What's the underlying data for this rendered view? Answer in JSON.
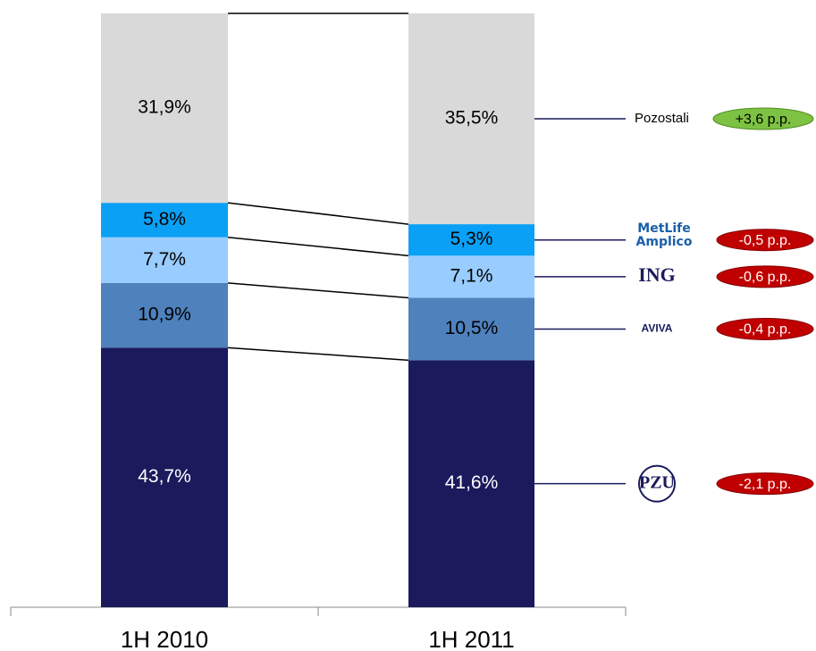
{
  "chart_data": {
    "type": "stacked_bar",
    "categories": [
      "1H 2010",
      "1H 2011"
    ],
    "ylim": [
      0,
      100
    ],
    "series": [
      {
        "name": "PZU",
        "color": "#1a1a5c",
        "values": [
          43.7,
          41.6
        ],
        "value_labels": [
          "43,7%",
          "41,6%"
        ],
        "change": -2.1,
        "change_label": "-2,1 p.p."
      },
      {
        "name": "AVIVA",
        "color": "#4f81bd",
        "values": [
          10.9,
          10.5
        ],
        "value_labels": [
          "10,9%",
          "10,5%"
        ],
        "change": -0.4,
        "change_label": "-0,4 p.p."
      },
      {
        "name": "ING",
        "color": "#99ccff",
        "values": [
          7.7,
          7.1
        ],
        "value_labels": [
          "7,7%",
          "7,1%"
        ],
        "change": -0.6,
        "change_label": "-0,6 p.p."
      },
      {
        "name": "MetLife Amplico",
        "color": "#0aa0f5",
        "values": [
          5.8,
          5.3
        ],
        "value_labels": [
          "5,8%",
          "5,3%"
        ],
        "change": -0.5,
        "change_label": "-0,5 p.p."
      },
      {
        "name": "Pozostali",
        "color": "#d9d9d9",
        "values": [
          31.9,
          35.5
        ],
        "value_labels": [
          "31,9%",
          "35,5%"
        ],
        "change": 3.6,
        "change_label": "+3,6 p.p."
      }
    ]
  }
}
